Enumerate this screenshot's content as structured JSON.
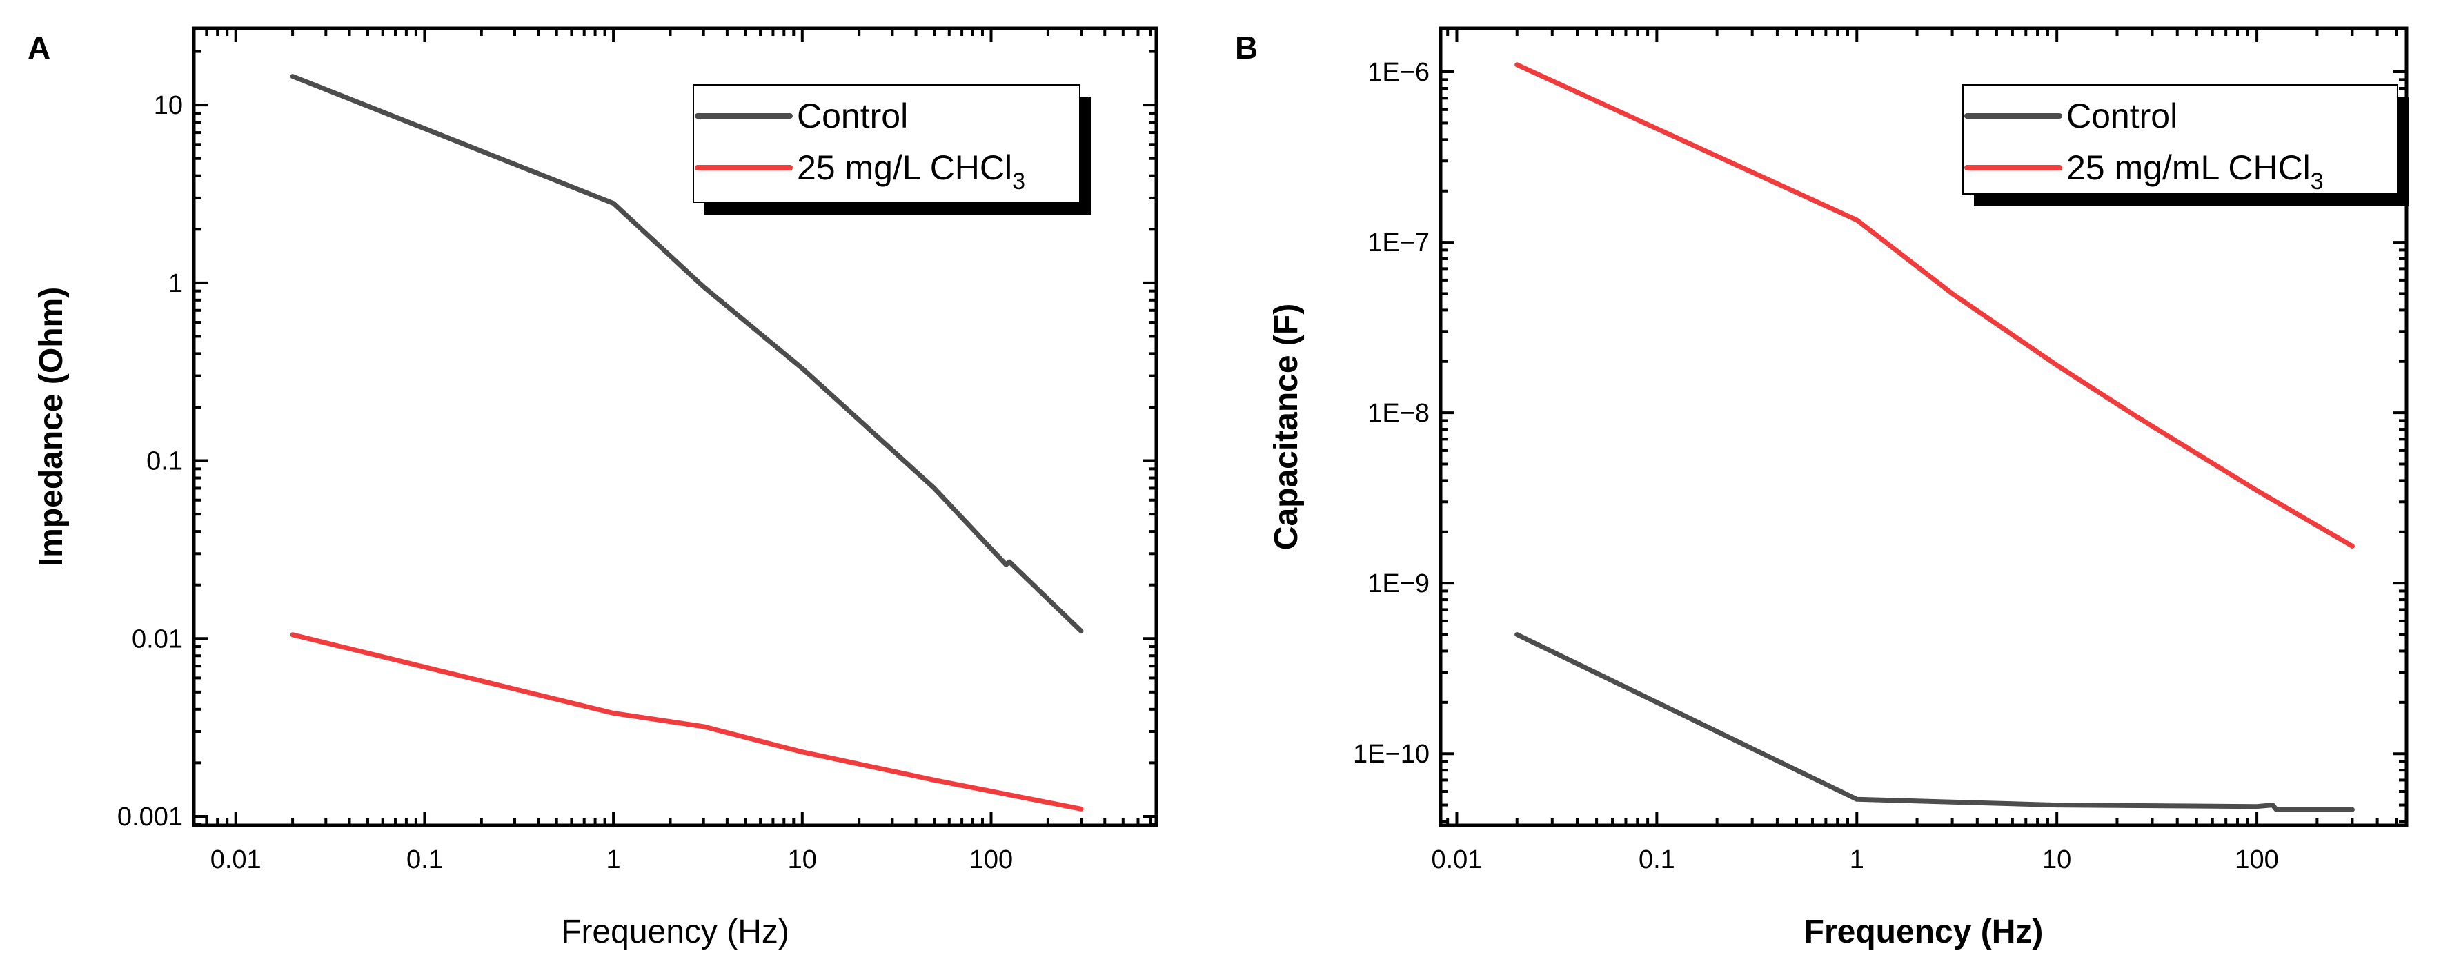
{
  "chart_data": [
    {
      "panel": "A",
      "type": "line",
      "xlabel": "Frequency (Hz)",
      "ylabel": "Impedance (Ohm)",
      "xscale": "log",
      "yscale": "log",
      "xlim": [
        0.006,
        750
      ],
      "ylim": [
        0.00089,
        27
      ],
      "xticks": [
        0.01,
        0.1,
        1,
        10,
        100
      ],
      "xtick_labels": [
        "0.01",
        "0.1",
        "1",
        "10",
        "100"
      ],
      "yticks": [
        0.001,
        0.01,
        0.1,
        1,
        10
      ],
      "ytick_labels": [
        "0.001",
        "0.01",
        "0.1",
        "1",
        "10"
      ],
      "legend_position": "top-right",
      "series": [
        {
          "name": "Control",
          "legend_main": "Control",
          "legend_sub": "",
          "color": "#4d4d4d",
          "x": [
            0.02,
            1,
            3,
            10,
            50,
            120,
            125,
            300
          ],
          "y": [
            14.5,
            2.8,
            0.95,
            0.33,
            0.07,
            0.026,
            0.027,
            0.011
          ]
        },
        {
          "name": "25 mg/L CHCl3",
          "legend_main": "25 mg/L CHCl",
          "legend_sub": "3",
          "color": "#f03c3c",
          "x": [
            0.02,
            1,
            3,
            10,
            50,
            300
          ],
          "y": [
            0.0105,
            0.0038,
            0.0032,
            0.0023,
            0.0016,
            0.0011
          ]
        }
      ]
    },
    {
      "panel": "B",
      "type": "line",
      "xlabel": "Frequency (Hz)",
      "ylabel": "Capacitance (F)",
      "xscale": "log",
      "yscale": "log",
      "xlim": [
        0.0083,
        560
      ],
      "ylim": [
        3.8e-11,
        1.8e-06
      ],
      "xticks": [
        0.01,
        0.1,
        1,
        10,
        100
      ],
      "xtick_labels": [
        "0.01",
        "0.1",
        "1",
        "10",
        "100"
      ],
      "yticks": [
        1e-10,
        1e-09,
        1e-08,
        1e-07,
        1e-06
      ],
      "ytick_labels": [
        "1E−10",
        "1E−9",
        "1E−8",
        "1E−7",
        "1E−6"
      ],
      "legend_position": "top-right",
      "series": [
        {
          "name": "Control",
          "legend_main": "Control",
          "legend_sub": "",
          "color": "#4d4d4d",
          "x": [
            0.02,
            1,
            10,
            100,
            120,
            125,
            300
          ],
          "y": [
            5e-10,
            5.4e-11,
            5e-11,
            4.9e-11,
            5e-11,
            4.7e-11,
            4.7e-11
          ]
        },
        {
          "name": "25 mg/mL CHCl3",
          "legend_main": "25 mg/mL CHCl",
          "legend_sub": "3",
          "color": "#f03c3c",
          "x": [
            0.02,
            1,
            3,
            10,
            25,
            100,
            300
          ],
          "y": [
            1.1e-06,
            1.35e-07,
            5e-08,
            1.9e-08,
            9.5e-09,
            3.5e-09,
            1.65e-09
          ]
        }
      ]
    }
  ]
}
